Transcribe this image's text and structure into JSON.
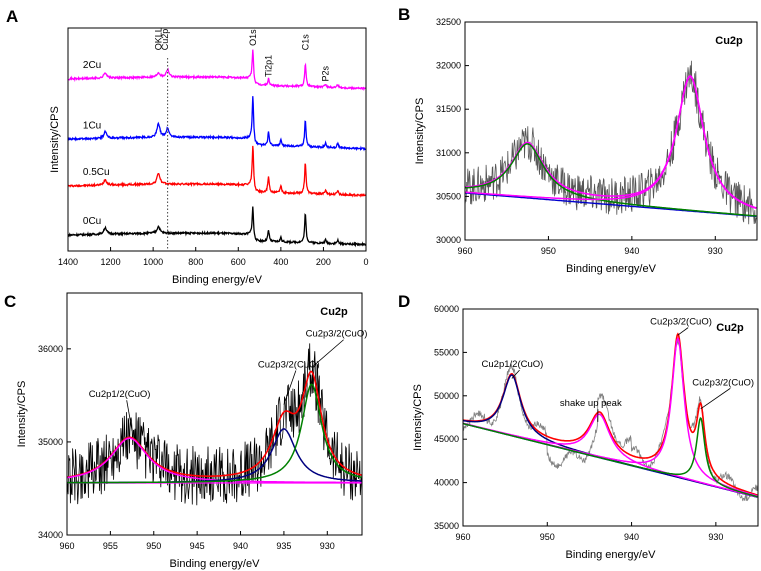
{
  "chart_data": [
    {
      "panel": "A",
      "type": "line",
      "xlabel": "Binding energy/eV",
      "ylabel": "Intensity/CPS",
      "xlim": [
        1400,
        0
      ],
      "xticks": [
        1400,
        1200,
        1000,
        800,
        600,
        400,
        200,
        0
      ],
      "ylim": [
        0,
        100
      ],
      "annotations": [
        {
          "text": "OKLL",
          "x": 975,
          "y": 90,
          "rotate": true
        },
        {
          "text": "Cu2p",
          "x": 945,
          "y": 90,
          "rotate": true
        },
        {
          "text": "O1s",
          "x": 531,
          "y": 92,
          "rotate": true
        },
        {
          "text": "Ti2p1",
          "x": 458,
          "y": 78,
          "rotate": true
        },
        {
          "text": "C1s",
          "x": 285,
          "y": 90,
          "rotate": true
        },
        {
          "text": "P2s",
          "x": 190,
          "y": 76,
          "rotate": true
        }
      ],
      "reference_line": {
        "x": 932,
        "style": "dotted"
      },
      "series": [
        {
          "name": "2Cu",
          "color": "#ff00ff",
          "base": 78,
          "label_x": 1330,
          "peaks": [
            [
              1225,
              2.5
            ],
            [
              975,
              2
            ],
            [
              932,
              3.5
            ],
            [
              531,
              14
            ],
            [
              458,
              3
            ],
            [
              285,
              10
            ],
            [
              190,
              1.5
            ],
            [
              133,
              1.5
            ]
          ]
        },
        {
          "name": "1Cu",
          "color": "#0000ff",
          "base": 51,
          "label_x": 1330,
          "peaks": [
            [
              1225,
              3
            ],
            [
              975,
              6
            ],
            [
              932,
              4
            ],
            [
              531,
              20
            ],
            [
              458,
              6
            ],
            [
              400,
              3
            ],
            [
              285,
              12
            ],
            [
              190,
              2
            ],
            [
              133,
              2
            ]
          ]
        },
        {
          "name": "0.5Cu",
          "color": "#ff0000",
          "base": 30,
          "label_x": 1330,
          "peaks": [
            [
              1225,
              2.5
            ],
            [
              975,
              5
            ],
            [
              531,
              19
            ],
            [
              458,
              7
            ],
            [
              400,
              3
            ],
            [
              285,
              14
            ],
            [
              190,
              2
            ],
            [
              133,
              2
            ]
          ]
        },
        {
          "name": "0Cu",
          "color": "#000000",
          "base": 8,
          "label_x": 1330,
          "peaks": [
            [
              1225,
              3
            ],
            [
              975,
              3
            ],
            [
              531,
              13
            ],
            [
              458,
              5
            ],
            [
              400,
              2
            ],
            [
              285,
              13
            ],
            [
              190,
              1.5
            ],
            [
              133,
              1.5
            ]
          ]
        }
      ]
    },
    {
      "panel": "B",
      "type": "line",
      "title": "Cu2p",
      "xlabel": "Binding energy/eV",
      "ylabel": "Intensity/CPS",
      "xlim": [
        960,
        925
      ],
      "ylim": [
        30000,
        32500
      ],
      "xticks": [
        960,
        950,
        940,
        930
      ],
      "yticks": [
        30000,
        30500,
        31000,
        31500,
        32000,
        32500
      ],
      "baseline": {
        "from": [
          960,
          30540
        ],
        "to": [
          925,
          30270
        ]
      },
      "series": [
        {
          "name": "raw",
          "color": "#555555",
          "kind": "noisy",
          "noise": 220
        },
        {
          "name": "background",
          "color": "#0000cc",
          "kind": "baseline"
        },
        {
          "name": "fit",
          "color": "#ff00ff",
          "kind": "sum"
        },
        {
          "name": "peak1",
          "color": "#008000",
          "center": 952.5,
          "height": 620,
          "width": 2.4
        },
        {
          "name": "peak2",
          "color": "#ff00ff",
          "center": 933,
          "height": 1540,
          "width": 2.0
        }
      ]
    },
    {
      "panel": "C",
      "type": "line",
      "title": "Cu2p",
      "xlabel": "Binding energy/eV",
      "ylabel": "Intensity/CPS",
      "xlim": [
        960,
        926
      ],
      "ylim": [
        34000,
        36600
      ],
      "xticks": [
        960,
        955,
        950,
        945,
        940,
        935,
        930
      ],
      "yticks": [
        34000,
        35000,
        36000
      ],
      "baseline": {
        "from": [
          960,
          34560
        ],
        "to": [
          926,
          34560
        ]
      },
      "annotations": [
        {
          "text": "Cu2p1/2(CuO)",
          "x": 957.5,
          "y": 35480,
          "arrow_to": [
            952.5,
            35120
          ]
        },
        {
          "text": "Cu2p3/2(CuO)",
          "x": 938,
          "y": 35800,
          "arrow_to": [
            935,
            35400
          ]
        },
        {
          "text": "Cu2p3/2(CuO)",
          "x": 932.5,
          "y": 36130,
          "arrow_to": [
            931.8,
            35800
          ]
        }
      ],
      "series": [
        {
          "name": "raw",
          "color": "#000000",
          "kind": "noisy",
          "noise": 320
        },
        {
          "name": "background",
          "color": "#ff00ff",
          "kind": "baseline"
        },
        {
          "name": "fit",
          "color": "#ff0000",
          "kind": "sum"
        },
        {
          "name": "Cu2p1/2(CuO)",
          "color": "#ff00ff",
          "center": 952.8,
          "height": 480,
          "width": 2.6
        },
        {
          "name": "Cu2p3/2(CuO)",
          "color": "#000080",
          "center": 935,
          "height": 580,
          "width": 1.7
        },
        {
          "name": "Cu2p3/2(CuO)",
          "color": "#008000",
          "center": 931.8,
          "height": 1060,
          "width": 1.4
        }
      ]
    },
    {
      "panel": "D",
      "type": "line",
      "title": "Cu2p",
      "xlabel": "Binding energy/eV",
      "ylabel": "Intensity/CPS",
      "xlim": [
        960,
        925
      ],
      "ylim": [
        35000,
        60000
      ],
      "xticks": [
        960,
        950,
        940,
        930
      ],
      "yticks": [
        35000,
        40000,
        45000,
        50000,
        55000,
        60000
      ],
      "baseline": {
        "from": [
          960,
          46800
        ],
        "to": [
          925,
          38300
        ]
      },
      "annotations": [
        {
          "text": "Cu2p1/2(CuO)",
          "x": 957.8,
          "y": 53300,
          "arrow_to": [
            954.2,
            52000
          ]
        },
        {
          "text": "shake up peak",
          "x": 948.5,
          "y": 48800,
          "arrow_to": [
            944,
            47000
          ]
        },
        {
          "text": "Cu2p3/2(CuO)",
          "x": 937.8,
          "y": 58200,
          "arrow_to": [
            934.5,
            57000
          ]
        },
        {
          "text": "Cu2p3/2(CuO)",
          "x": 932.8,
          "y": 51200,
          "arrow_to": [
            931.8,
            48500
          ]
        }
      ],
      "series": [
        {
          "name": "raw",
          "color": "#808080",
          "kind": "noisy",
          "noise": 800
        },
        {
          "name": "background",
          "color": "#0000cc",
          "kind": "baseline"
        },
        {
          "name": "fit",
          "color": "#ff0000",
          "kind": "sum"
        },
        {
          "name": "Cu2p1/2(CuO)",
          "color": "#000080",
          "center": 954.2,
          "height": 7000,
          "width": 1.3
        },
        {
          "name": "shake up peak",
          "color": "#ff00ff",
          "center": 943.8,
          "height": 5000,
          "width": 1.5
        },
        {
          "name": "Cu2p3/2(CuO)",
          "color": "#ff00ff",
          "center": 934.5,
          "height": 16000,
          "width": 0.9
        },
        {
          "name": "Cu2p3/2(CuO)",
          "color": "#008000",
          "center": 931.8,
          "height": 7500,
          "width": 0.6
        }
      ]
    }
  ],
  "panels": [
    {
      "letter": "A"
    },
    {
      "letter": "B"
    },
    {
      "letter": "C"
    },
    {
      "letter": "D"
    }
  ]
}
